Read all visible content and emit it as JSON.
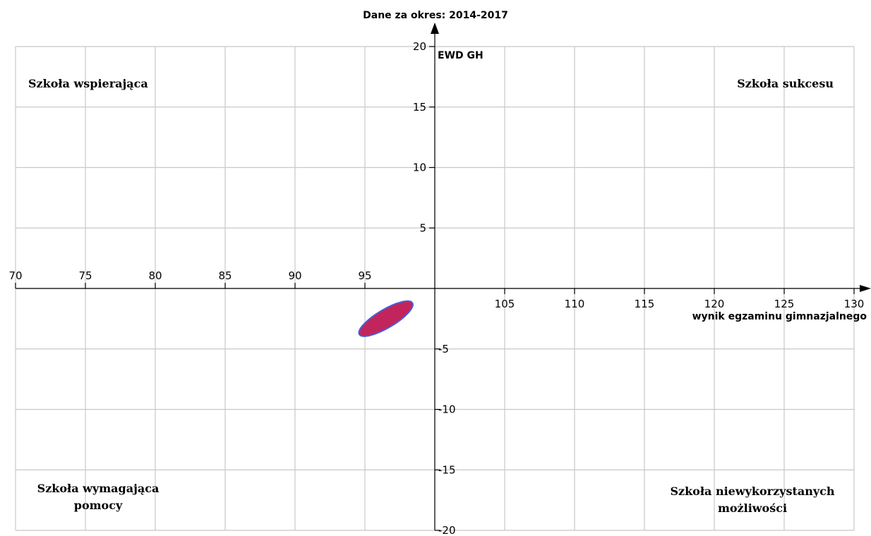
{
  "chart_data": {
    "type": "scatter",
    "title": "Dane za okres: 2014-2017",
    "xlabel": "wynik egzaminu gimnazjalnego",
    "ylabel": "EWD GH",
    "xlim": [
      70,
      130
    ],
    "ylim": [
      -20,
      20
    ],
    "x_ticks": [
      70,
      75,
      80,
      85,
      90,
      95,
      105,
      110,
      115,
      120,
      125,
      130
    ],
    "y_ticks": [
      20,
      15,
      10,
      5,
      -5,
      -10,
      -15,
      -20
    ],
    "y_tick_labels": [
      "20",
      "15",
      "10",
      "5",
      "-5",
      "-10",
      "-15",
      "-20"
    ],
    "grid": true,
    "quadrant_labels": {
      "top_left": "Szkoła wspierająca",
      "top_right": "Szkoła sukcesu",
      "bottom_left": [
        "Szkoła wymagająca",
        "pomocy"
      ],
      "bottom_right": [
        "Szkoła niewykorzystanych",
        "możliwości"
      ]
    },
    "series": [
      {
        "shape": "confidence-ellipse",
        "center_x": 96.8,
        "center_y": -2.5,
        "x_extent": [
          94.6,
          98.4
        ],
        "y_extent": [
          -3.8,
          -1.2
        ],
        "fill_color": "#c2255c",
        "edge_color": "#4a5bd6"
      }
    ]
  }
}
